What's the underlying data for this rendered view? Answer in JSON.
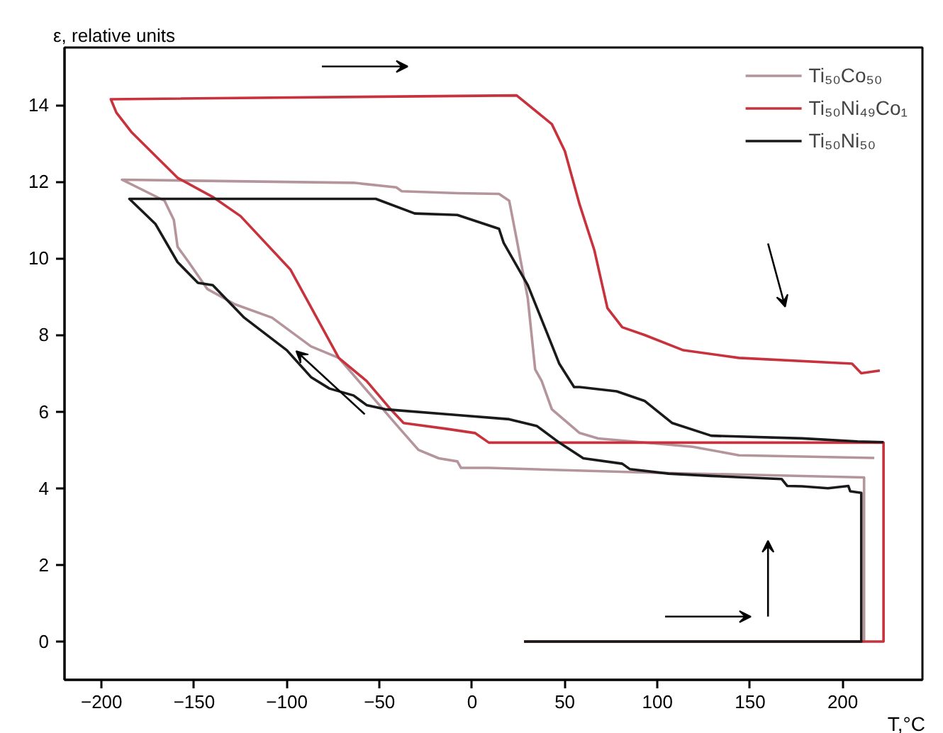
{
  "chart_data": {
    "type": "line",
    "xlabel": "T,°C",
    "ylabel": "ε, relative units",
    "xlim": [
      -220,
      243
    ],
    "ylim": [
      -1,
      15.5
    ],
    "xticks": [
      -200,
      -150,
      -100,
      -50,
      0,
      50,
      100,
      150,
      200
    ],
    "yticks": [
      0,
      2,
      4,
      6,
      8,
      10,
      12,
      14
    ],
    "grid": false,
    "legend": "top right",
    "marker": "none",
    "line_style": "solid",
    "series": [
      {
        "name": "Ti₅₀Co₅₀",
        "color": "#b5959c",
        "x": [
          28,
          211.5,
          211.5,
          150,
          100,
          9,
          -6,
          -8,
          -18,
          -29,
          -39,
          -72,
          -87,
          -108,
          -128,
          -143,
          -153,
          -159,
          -161,
          -166,
          -189,
          -64,
          -41,
          -38,
          -8,
          14.5,
          20,
          24,
          30,
          34,
          37.5,
          43,
          58,
          68,
          119,
          144,
          217
        ],
        "values": [
          0,
          0,
          4.28,
          4.35,
          4.4,
          4.53,
          4.53,
          4.7,
          4.78,
          5.0,
          5.55,
          7.4,
          7.7,
          8.45,
          8.8,
          9.2,
          9.9,
          10.3,
          11.0,
          11.5,
          12.05,
          11.97,
          11.85,
          11.75,
          11.7,
          11.68,
          11.5,
          10.5,
          8.96,
          7.1,
          6.8,
          6.06,
          5.44,
          5.3,
          5.08,
          4.86,
          4.79
        ]
      },
      {
        "name": "Ti₅₀Ni₄₉Co₁",
        "color": "#c8323c",
        "x": [
          28,
          222,
          222,
          9,
          1.5,
          -14,
          -37,
          -44,
          -57,
          -72,
          -98,
          -125,
          -140,
          -159,
          -184,
          -192,
          -195,
          24,
          43,
          50,
          58,
          66,
          73,
          81,
          93,
          114,
          144,
          205,
          210,
          220
        ],
        "values": [
          0,
          0,
          5.19,
          5.19,
          5.44,
          5.55,
          5.7,
          6.06,
          6.8,
          7.4,
          9.7,
          11.1,
          11.6,
          12.1,
          13.3,
          13.8,
          14.15,
          14.25,
          13.5,
          12.8,
          11.4,
          10.2,
          8.7,
          8.2,
          8.0,
          7.6,
          7.4,
          7.25,
          7.0,
          7.07
        ]
      },
      {
        "name": "Ti₅₀Ni₅₀",
        "color": "#1a1a1a",
        "x": [
          28,
          210,
          210,
          204,
          203,
          192,
          178,
          170,
          167,
          129,
          106,
          85,
          81,
          60,
          47,
          35,
          20,
          -8,
          -47,
          -57,
          -64,
          -77,
          -87,
          -100,
          -123,
          -140,
          -148,
          -159,
          -171,
          -185,
          -52,
          -31,
          -8,
          14.5,
          17,
          30,
          40,
          47,
          55,
          58,
          78,
          93,
          108,
          129,
          178,
          208,
          222
        ],
        "values": [
          0,
          0,
          3.88,
          3.92,
          4.06,
          4.0,
          4.05,
          4.06,
          4.24,
          4.32,
          4.38,
          4.5,
          4.64,
          4.78,
          5.19,
          5.62,
          5.8,
          5.91,
          6.06,
          6.17,
          6.42,
          6.6,
          6.9,
          7.6,
          8.45,
          9.3,
          9.36,
          9.9,
          10.9,
          11.55,
          11.55,
          11.17,
          11.13,
          10.77,
          10.4,
          9.3,
          8.1,
          7.25,
          6.64,
          6.64,
          6.53,
          6.28,
          5.7,
          5.37,
          5.3,
          5.22,
          5.2
        ]
      }
    ]
  }
}
